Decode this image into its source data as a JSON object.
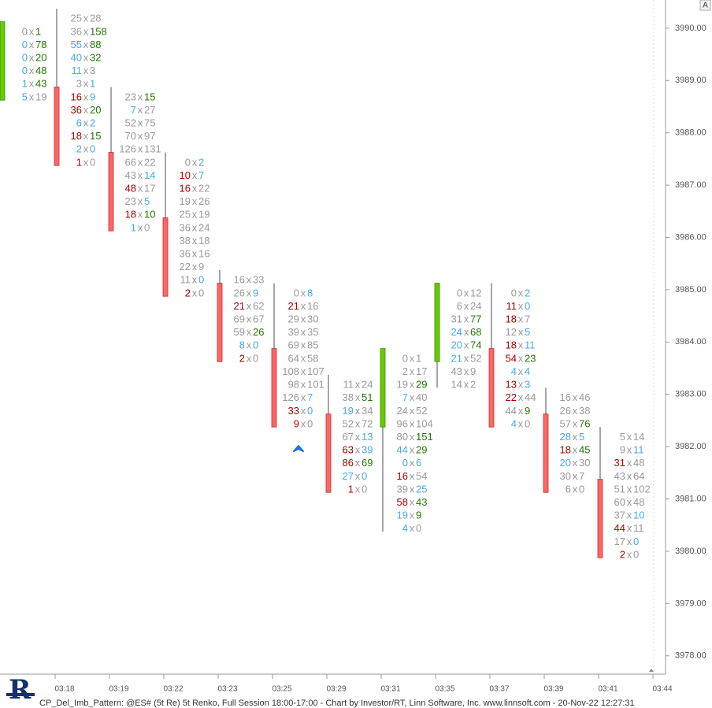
{
  "chart_data": {
    "type": "footprint",
    "title": "CP_Del_Imb_Pattern: @ES# (5t Re) 5t Renko, Full Session 18:00-17:00 - Chart by Investor/RT, Linn Software, Inc. www.linnsoft.com - 20-Nov-22 12:27:31",
    "scale_label": "A",
    "separator": "x",
    "up_color": "#66cc00",
    "down_color": "#ff6666",
    "ylim": [
      3977.65,
      3990.54
    ],
    "yticks": [
      {
        "value": 3978,
        "label": "3978.00"
      },
      {
        "value": 3979,
        "label": "3979.00"
      },
      {
        "value": 3980,
        "label": "3980.00"
      },
      {
        "value": 3981,
        "label": "3981.00"
      },
      {
        "value": 3982,
        "label": "3982.00"
      },
      {
        "value": 3983,
        "label": "3983.00"
      },
      {
        "value": 3984,
        "label": "3984.00"
      },
      {
        "value": 3985,
        "label": "3985.00"
      },
      {
        "value": 3986,
        "label": "3986.00"
      },
      {
        "value": 3987,
        "label": "3987.00"
      },
      {
        "value": 3988,
        "label": "3988.00"
      },
      {
        "value": 3989,
        "label": "3989.00"
      },
      {
        "value": 3990,
        "label": "3990.00"
      }
    ],
    "categories": [
      null,
      "03:18",
      "03:19",
      "03:22",
      "03:23",
      "03:25",
      "03:29",
      "03:31",
      "03:35",
      "03:37",
      "03:39",
      "03:41",
      "03:44"
    ],
    "columns": [
      {
        "open": 3988.625,
        "close": 3990.125,
        "rows": [
          [
            3990,
            0,
            1,
            "#999",
            "#270"
          ],
          [
            3989.75,
            0,
            78,
            "#4ae",
            "#270"
          ],
          [
            3989.5,
            0,
            20,
            "#4ae",
            "#270"
          ],
          [
            3989.25,
            0,
            48,
            "#4ae",
            "#270"
          ],
          [
            3989,
            1,
            43,
            "#4ae",
            "#270"
          ],
          [
            3988.75,
            5,
            19,
            "#4ae",
            "#999"
          ]
        ]
      },
      {
        "open": 3988.875,
        "close": 3987.375,
        "high": 3990.375,
        "low": 3987.375,
        "rows": [
          [
            3990.25,
            25,
            28,
            "#999",
            "#999"
          ],
          [
            3990,
            36,
            158,
            "#999",
            "#270"
          ],
          [
            3989.75,
            55,
            88,
            "#4ae",
            "#270"
          ],
          [
            3989.5,
            40,
            32,
            "#4ae",
            "#270"
          ],
          [
            3989.25,
            11,
            3,
            "#4ae",
            "#999"
          ],
          [
            3989,
            3,
            1,
            "#999",
            "#4ae"
          ],
          [
            3988.75,
            16,
            9,
            "#a00",
            "#4ae"
          ],
          [
            3988.5,
            36,
            20,
            "#a00",
            "#270"
          ],
          [
            3988.25,
            6,
            2,
            "#4ae",
            "#4ae"
          ],
          [
            3988,
            18,
            15,
            "#a00",
            "#270"
          ],
          [
            3987.75,
            2,
            0,
            "#4ae",
            "#4ae"
          ],
          [
            3987.5,
            1,
            0,
            "#a00",
            "#999"
          ]
        ]
      },
      {
        "open": 3987.625,
        "close": 3986.125,
        "high": 3988.875,
        "low": 3986.125,
        "rows": [
          [
            3988.75,
            23,
            15,
            "#999",
            "#270"
          ],
          [
            3988.5,
            7,
            27,
            "#4ae",
            "#999"
          ],
          [
            3988.25,
            52,
            75,
            "#999",
            "#999"
          ],
          [
            3988,
            70,
            97,
            "#999",
            "#999"
          ],
          [
            3987.75,
            126,
            131,
            "#999",
            "#999"
          ],
          [
            3987.5,
            66,
            22,
            "#999",
            "#999"
          ],
          [
            3987.25,
            43,
            14,
            "#999",
            "#4ae"
          ],
          [
            3987,
            48,
            17,
            "#a00",
            "#999"
          ],
          [
            3986.75,
            23,
            5,
            "#999",
            "#4ae"
          ],
          [
            3986.5,
            18,
            10,
            "#a00",
            "#270"
          ],
          [
            3986.25,
            1,
            0,
            "#4ae",
            "#999"
          ]
        ]
      },
      {
        "open": 3986.375,
        "close": 3984.875,
        "high": 3987.625,
        "low": 3984.875,
        "rows": [
          [
            3987.5,
            0,
            2,
            "#999",
            "#4ae"
          ],
          [
            3987.25,
            10,
            7,
            "#a00",
            "#4ae"
          ],
          [
            3987,
            16,
            22,
            "#a00",
            "#999"
          ],
          [
            3986.75,
            19,
            26,
            "#999",
            "#999"
          ],
          [
            3986.5,
            25,
            19,
            "#999",
            "#999"
          ],
          [
            3986.25,
            36,
            24,
            "#999",
            "#999"
          ],
          [
            3986,
            38,
            18,
            "#999",
            "#999"
          ],
          [
            3985.75,
            36,
            16,
            "#999",
            "#999"
          ],
          [
            3985.5,
            22,
            9,
            "#999",
            "#999"
          ],
          [
            3985.25,
            11,
            0,
            "#999",
            "#4ae"
          ],
          [
            3985,
            2,
            0,
            "#a00",
            "#999"
          ]
        ]
      },
      {
        "open": 3985.125,
        "close": 3983.625,
        "high": 3985.375,
        "low": 3983.625,
        "rows": [
          [
            3985.25,
            16,
            33,
            "#999",
            "#999"
          ],
          [
            3985,
            26,
            9,
            "#999",
            "#4ae"
          ],
          [
            3984.75,
            21,
            62,
            "#a00",
            "#999"
          ],
          [
            3984.5,
            69,
            67,
            "#999",
            "#999"
          ],
          [
            3984.25,
            59,
            26,
            "#999",
            "#270"
          ],
          [
            3984,
            8,
            0,
            "#4ae",
            "#4ae"
          ],
          [
            3983.75,
            2,
            0,
            "#a00",
            "#999"
          ]
        ]
      },
      {
        "open": 3983.875,
        "close": 3982.375,
        "high": 3985.125,
        "low": 3982.375,
        "rows": [
          [
            3985,
            0,
            8,
            "#999",
            "#4ae"
          ],
          [
            3984.75,
            21,
            16,
            "#a00",
            "#999"
          ],
          [
            3984.5,
            29,
            30,
            "#999",
            "#999"
          ],
          [
            3984.25,
            39,
            35,
            "#999",
            "#999"
          ],
          [
            3984,
            69,
            85,
            "#999",
            "#999"
          ],
          [
            3983.75,
            64,
            58,
            "#999",
            "#999"
          ],
          [
            3983.5,
            108,
            107,
            "#999",
            "#999"
          ],
          [
            3983.25,
            98,
            101,
            "#999",
            "#999"
          ],
          [
            3983,
            126,
            7,
            "#999",
            "#4ae"
          ],
          [
            3982.75,
            33,
            0,
            "#a00",
            "#4ae"
          ],
          [
            3982.5,
            9,
            0,
            "#a00",
            "#999"
          ]
        ]
      },
      {
        "open": 3982.625,
        "close": 3981.125,
        "high": 3983.375,
        "low": 3981.125,
        "rows": [
          [
            3983.25,
            11,
            24,
            "#999",
            "#999"
          ],
          [
            3983,
            38,
            51,
            "#999",
            "#270"
          ],
          [
            3982.75,
            19,
            34,
            "#4ae",
            "#999"
          ],
          [
            3982.5,
            52,
            72,
            "#999",
            "#999"
          ],
          [
            3982.25,
            67,
            13,
            "#999",
            "#4ae"
          ],
          [
            3982,
            63,
            39,
            "#a00",
            "#4ae"
          ],
          [
            3981.75,
            86,
            69,
            "#a00",
            "#270"
          ],
          [
            3981.5,
            27,
            0,
            "#4ae",
            "#4ae"
          ],
          [
            3981.25,
            1,
            0,
            "#a00",
            "#999"
          ]
        ]
      },
      {
        "open": 3982.375,
        "close": 3983.875,
        "high": 3983.875,
        "low": 3980.375,
        "rows": [
          [
            3983.75,
            0,
            1,
            "#999",
            "#999"
          ],
          [
            3983.5,
            2,
            17,
            "#999",
            "#999"
          ],
          [
            3983.25,
            19,
            29,
            "#999",
            "#270"
          ],
          [
            3983,
            7,
            40,
            "#4ae",
            "#999"
          ],
          [
            3982.75,
            24,
            52,
            "#999",
            "#999"
          ],
          [
            3982.5,
            96,
            104,
            "#999",
            "#999"
          ],
          [
            3982.25,
            80,
            151,
            "#999",
            "#270"
          ],
          [
            3982,
            44,
            29,
            "#4ae",
            "#270"
          ],
          [
            3981.75,
            0,
            6,
            "#4ae",
            "#4ae"
          ],
          [
            3981.5,
            16,
            54,
            "#a00",
            "#999"
          ],
          [
            3981.25,
            39,
            25,
            "#999",
            "#4ae"
          ],
          [
            3981,
            58,
            43,
            "#a00",
            "#270"
          ],
          [
            3980.75,
            19,
            9,
            "#4ae",
            "#270"
          ],
          [
            3980.5,
            4,
            0,
            "#4ae",
            "#999"
          ]
        ]
      },
      {
        "open": 3983.625,
        "close": 3985.125,
        "high": 3985.125,
        "low": 3983.125,
        "rows": [
          [
            3985,
            0,
            12,
            "#999",
            "#999"
          ],
          [
            3984.75,
            6,
            24,
            "#999",
            "#999"
          ],
          [
            3984.5,
            31,
            77,
            "#999",
            "#270"
          ],
          [
            3984.25,
            24,
            68,
            "#4ae",
            "#270"
          ],
          [
            3984,
            20,
            74,
            "#4ae",
            "#270"
          ],
          [
            3983.75,
            21,
            52,
            "#4ae",
            "#999"
          ],
          [
            3983.5,
            43,
            9,
            "#999",
            "#999"
          ],
          [
            3983.25,
            14,
            2,
            "#999",
            "#999"
          ]
        ]
      },
      {
        "open": 3983.875,
        "close": 3982.375,
        "high": 3985.125,
        "low": 3982.375,
        "rows": [
          [
            3985,
            0,
            2,
            "#999",
            "#4ae"
          ],
          [
            3984.75,
            11,
            0,
            "#a00",
            "#4ae"
          ],
          [
            3984.5,
            18,
            7,
            "#a00",
            "#999"
          ],
          [
            3984.25,
            12,
            5,
            "#999",
            "#4ae"
          ],
          [
            3984,
            18,
            11,
            "#a00",
            "#4ae"
          ],
          [
            3983.75,
            54,
            23,
            "#a00",
            "#270"
          ],
          [
            3983.5,
            4,
            4,
            "#4ae",
            "#4ae"
          ],
          [
            3983.25,
            13,
            3,
            "#a00",
            "#4ae"
          ],
          [
            3983,
            22,
            44,
            "#a00",
            "#999"
          ],
          [
            3982.75,
            44,
            9,
            "#999",
            "#270"
          ],
          [
            3982.5,
            4,
            0,
            "#4ae",
            "#999"
          ]
        ]
      },
      {
        "open": 3982.625,
        "close": 3981.125,
        "high": 3983.125,
        "low": 3981.125,
        "rows": [
          [
            3983,
            16,
            46,
            "#999",
            "#999"
          ],
          [
            3982.75,
            26,
            38,
            "#999",
            "#999"
          ],
          [
            3982.5,
            57,
            76,
            "#999",
            "#270"
          ],
          [
            3982.25,
            28,
            5,
            "#4ae",
            "#4ae"
          ],
          [
            3982,
            18,
            45,
            "#a00",
            "#270"
          ],
          [
            3981.75,
            20,
            30,
            "#4ae",
            "#999"
          ],
          [
            3981.5,
            30,
            7,
            "#999",
            "#999"
          ],
          [
            3981.25,
            6,
            0,
            "#999",
            "#999"
          ]
        ]
      },
      {
        "open": 3981.375,
        "close": 3979.875,
        "high": 3982.375,
        "low": 3979.875,
        "rows": [
          [
            3982.25,
            5,
            14,
            "#999",
            "#999"
          ],
          [
            3982,
            9,
            11,
            "#999",
            "#4ae"
          ],
          [
            3981.75,
            31,
            48,
            "#a00",
            "#999"
          ],
          [
            3981.5,
            43,
            64,
            "#999",
            "#999"
          ],
          [
            3981.25,
            51,
            102,
            "#999",
            "#999"
          ],
          [
            3981,
            60,
            48,
            "#999",
            "#999"
          ],
          [
            3980.75,
            37,
            10,
            "#999",
            "#4ae"
          ],
          [
            3980.5,
            44,
            11,
            "#a00",
            "#999"
          ],
          [
            3980.25,
            17,
            0,
            "#999",
            "#4ae"
          ],
          [
            3980,
            2,
            0,
            "#a00",
            "#999"
          ]
        ]
      }
    ]
  }
}
